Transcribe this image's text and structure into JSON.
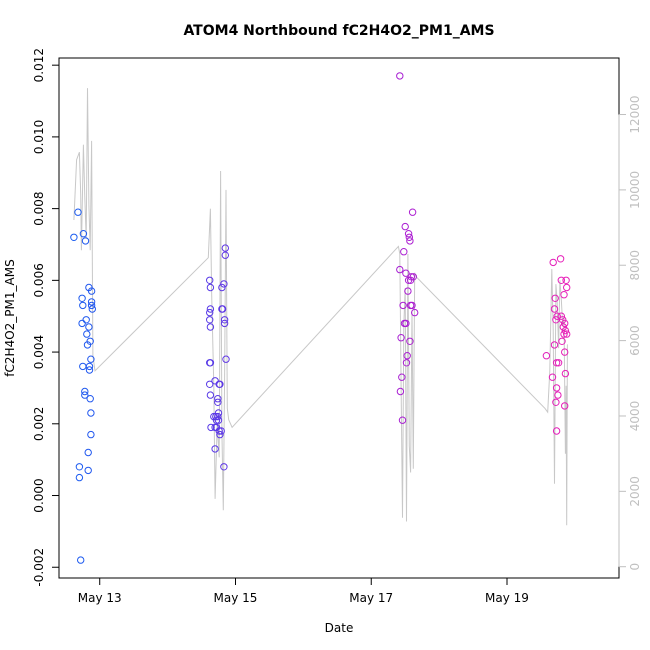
{
  "chart_data": {
    "type": "scatter",
    "title": "ATOM4 Northbound fC2H4O2_PM1_AMS",
    "xlabel": "Date",
    "ylabel": "fC2H4O2_PM1_AMS",
    "x_units": "days since May 12 00:00",
    "xlim": [
      0.4,
      8.65
    ],
    "ylim": [
      -0.0023,
      0.0122
    ],
    "x_ticks": [
      {
        "x": 1,
        "label": "May 13"
      },
      {
        "x": 3,
        "label": "May 15"
      },
      {
        "x": 5,
        "label": "May 17"
      },
      {
        "x": 7,
        "label": "May 19"
      }
    ],
    "y_ticks": [
      {
        "y": -0.002,
        "label": "-0.002"
      },
      {
        "y": 0.0,
        "label": "0.000"
      },
      {
        "y": 0.002,
        "label": "0.002"
      },
      {
        "y": 0.004,
        "label": "0.004"
      },
      {
        "y": 0.006,
        "label": "0.006"
      },
      {
        "y": 0.008,
        "label": "0.008"
      },
      {
        "y": 0.01,
        "label": "0.010"
      },
      {
        "y": 0.012,
        "label": "0.012"
      }
    ],
    "y2lim": [
      -300,
      13500
    ],
    "y2_ticks": [
      {
        "y": 0,
        "label": "0"
      },
      {
        "y": 2000,
        "label": "2000"
      },
      {
        "y": 4000,
        "label": "4000"
      },
      {
        "y": 6000,
        "label": "6000"
      },
      {
        "y": 8000,
        "label": "8000"
      },
      {
        "y": 10000,
        "label": "10000"
      },
      {
        "y": 12000,
        "label": "12000"
      }
    ],
    "colors": {
      "start": "#1a5cf0",
      "mid": "#8a1fe0",
      "end": "#e81fb8",
      "altitude_line": "#c8c8c8",
      "axis": "#000000",
      "right_axis": "#bfbfbf"
    },
    "series": [
      {
        "name": "fC2H4O2_PM1_AMS",
        "marker": "open-circle",
        "points": [
          [
            0.62,
            0.0072
          ],
          [
            0.68,
            0.0079
          ],
          [
            0.7,
            0.0008
          ],
          [
            0.7,
            0.0005
          ],
          [
            0.72,
            -0.0018
          ],
          [
            0.74,
            0.0048
          ],
          [
            0.74,
            0.0055
          ],
          [
            0.75,
            0.0053
          ],
          [
            0.75,
            0.0036
          ],
          [
            0.76,
            0.0073
          ],
          [
            0.78,
            0.0028
          ],
          [
            0.78,
            0.0029
          ],
          [
            0.79,
            0.0071
          ],
          [
            0.8,
            0.0049
          ],
          [
            0.81,
            0.0045
          ],
          [
            0.82,
            0.0042
          ],
          [
            0.83,
            0.0012
          ],
          [
            0.83,
            0.0007
          ],
          [
            0.84,
            0.0047
          ],
          [
            0.84,
            0.0058
          ],
          [
            0.85,
            0.0035
          ],
          [
            0.85,
            0.0036
          ],
          [
            0.86,
            0.0043
          ],
          [
            0.86,
            0.0027
          ],
          [
            0.87,
            0.0038
          ],
          [
            0.87,
            0.0023
          ],
          [
            0.87,
            0.0017
          ],
          [
            0.88,
            0.0054
          ],
          [
            0.88,
            0.0053
          ],
          [
            0.88,
            0.0057
          ],
          [
            0.89,
            0.0052
          ],
          [
            2.62,
            0.006
          ],
          [
            2.62,
            0.0051
          ],
          [
            2.62,
            0.0049
          ],
          [
            2.62,
            0.0037
          ],
          [
            2.62,
            0.0031
          ],
          [
            2.63,
            0.0058
          ],
          [
            2.63,
            0.0052
          ],
          [
            2.63,
            0.0047
          ],
          [
            2.63,
            0.0037
          ],
          [
            2.63,
            0.0028
          ],
          [
            2.64,
            0.0019
          ],
          [
            2.68,
            0.0022
          ],
          [
            2.7,
            0.0013
          ],
          [
            2.7,
            0.0032
          ],
          [
            2.7,
            0.0019
          ],
          [
            2.71,
            0.0022
          ],
          [
            2.72,
            0.0021
          ],
          [
            2.72,
            0.0019
          ],
          [
            2.74,
            0.0026
          ],
          [
            2.74,
            0.0027
          ],
          [
            2.74,
            0.0022
          ],
          [
            2.75,
            0.0021
          ],
          [
            2.75,
            0.0023
          ],
          [
            2.76,
            0.0031
          ],
          [
            2.76,
            0.0018
          ],
          [
            2.77,
            0.0031
          ],
          [
            2.77,
            0.0017
          ],
          [
            2.79,
            0.0018
          ],
          [
            2.8,
            0.0058
          ],
          [
            2.8,
            0.0052
          ],
          [
            2.81,
            0.0052
          ],
          [
            2.83,
            0.0059
          ],
          [
            2.83,
            0.0008
          ],
          [
            2.84,
            0.0049
          ],
          [
            2.84,
            0.0048
          ],
          [
            2.85,
            0.0067
          ],
          [
            2.85,
            0.0069
          ],
          [
            2.86,
            0.0038
          ],
          [
            5.42,
            0.0117
          ],
          [
            5.42,
            0.0063
          ],
          [
            5.43,
            0.0029
          ],
          [
            5.44,
            0.0044
          ],
          [
            5.45,
            0.0033
          ],
          [
            5.46,
            0.0021
          ],
          [
            5.47,
            0.0053
          ],
          [
            5.48,
            0.0068
          ],
          [
            5.49,
            0.0048
          ],
          [
            5.5,
            0.0075
          ],
          [
            5.51,
            0.0048
          ],
          [
            5.51,
            0.0062
          ],
          [
            5.52,
            0.0037
          ],
          [
            5.53,
            0.0039
          ],
          [
            5.54,
            0.0057
          ],
          [
            5.55,
            0.006
          ],
          [
            5.55,
            0.0073
          ],
          [
            5.56,
            0.0072
          ],
          [
            5.57,
            0.0071
          ],
          [
            5.57,
            0.0043
          ],
          [
            5.58,
            0.0053
          ],
          [
            5.58,
            0.006
          ],
          [
            5.59,
            0.0061
          ],
          [
            5.6,
            0.0053
          ],
          [
            5.61,
            0.0079
          ],
          [
            5.62,
            0.0061
          ],
          [
            5.64,
            0.0051
          ],
          [
            7.58,
            0.0039
          ],
          [
            7.67,
            0.0033
          ],
          [
            7.68,
            0.0065
          ],
          [
            7.7,
            0.0042
          ],
          [
            7.7,
            0.0052
          ],
          [
            7.71,
            0.0055
          ],
          [
            7.72,
            0.0049
          ],
          [
            7.72,
            0.0026
          ],
          [
            7.73,
            0.0037
          ],
          [
            7.73,
            0.003
          ],
          [
            7.73,
            0.0018
          ],
          [
            7.74,
            0.005
          ],
          [
            7.75,
            0.0028
          ],
          [
            7.76,
            0.0037
          ],
          [
            7.79,
            0.0066
          ],
          [
            7.8,
            0.005
          ],
          [
            7.8,
            0.006
          ],
          [
            7.81,
            0.0043
          ],
          [
            7.82,
            0.0049
          ],
          [
            7.83,
            0.0047
          ],
          [
            7.84,
            0.0056
          ],
          [
            7.84,
            0.0045
          ],
          [
            7.85,
            0.004
          ],
          [
            7.85,
            0.0048
          ],
          [
            7.85,
            0.0025
          ],
          [
            7.86,
            0.0034
          ],
          [
            7.86,
            0.0046
          ],
          [
            7.87,
            0.006
          ],
          [
            7.88,
            0.0058
          ],
          [
            7.88,
            0.0045
          ]
        ]
      },
      {
        "name": "Altitude",
        "axis": "right",
        "line": [
          [
            0.62,
            9200
          ],
          [
            0.66,
            10800
          ],
          [
            0.7,
            11000
          ],
          [
            0.72,
            9900
          ],
          [
            0.73,
            8400
          ],
          [
            0.76,
            11200
          ],
          [
            0.78,
            9800
          ],
          [
            0.8,
            8700
          ],
          [
            0.82,
            12700
          ],
          [
            0.84,
            9600
          ],
          [
            0.86,
            8400
          ],
          [
            0.88,
            11300
          ],
          [
            0.9,
            5600
          ],
          [
            0.93,
            5200
          ],
          [
            2.6,
            8200
          ],
          [
            2.63,
            9500
          ],
          [
            2.65,
            7200
          ],
          [
            2.68,
            4800
          ],
          [
            2.7,
            1800
          ],
          [
            2.73,
            3800
          ],
          [
            2.76,
            2900
          ],
          [
            2.78,
            10500
          ],
          [
            2.8,
            3600
          ],
          [
            2.82,
            1500
          ],
          [
            2.84,
            5000
          ],
          [
            2.86,
            10000
          ],
          [
            2.88,
            4200
          ],
          [
            2.9,
            3900
          ],
          [
            2.95,
            3700
          ],
          [
            5.4,
            8500
          ],
          [
            5.42,
            8300
          ],
          [
            5.44,
            4800
          ],
          [
            5.46,
            1300
          ],
          [
            5.48,
            6400
          ],
          [
            5.5,
            7400
          ],
          [
            5.52,
            1200
          ],
          [
            5.54,
            8300
          ],
          [
            5.56,
            3200
          ],
          [
            5.58,
            2500
          ],
          [
            5.6,
            6800
          ],
          [
            5.62,
            2600
          ],
          [
            5.63,
            5300
          ],
          [
            5.64,
            7800
          ],
          [
            5.66,
            7700
          ],
          [
            7.56,
            4200
          ],
          [
            7.6,
            4100
          ],
          [
            7.63,
            5200
          ],
          [
            7.66,
            7900
          ],
          [
            7.68,
            6300
          ],
          [
            7.7,
            2200
          ],
          [
            7.72,
            7500
          ],
          [
            7.74,
            7000
          ],
          [
            7.76,
            5800
          ],
          [
            7.78,
            7600
          ],
          [
            7.8,
            7100
          ],
          [
            7.82,
            6400
          ],
          [
            7.84,
            6600
          ],
          [
            7.86,
            3000
          ],
          [
            7.87,
            4800
          ],
          [
            7.88,
            1100
          ],
          [
            7.89,
            5900
          ]
        ]
      }
    ]
  }
}
